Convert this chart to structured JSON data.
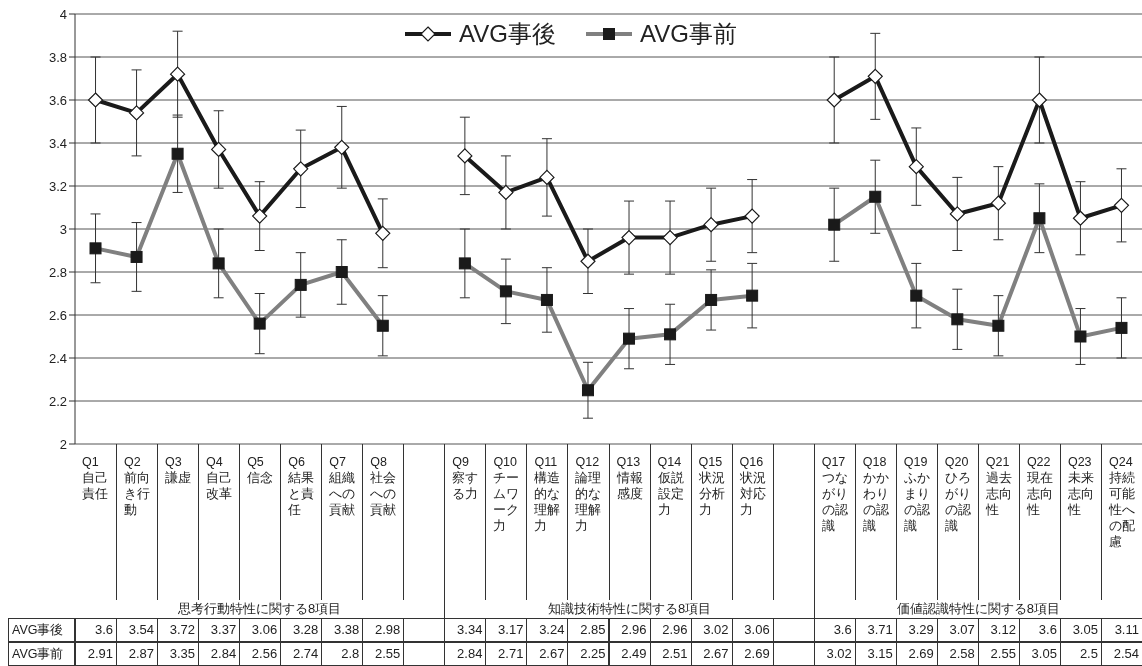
{
  "chart_data": {
    "type": "line",
    "categories": [
      "Q1 自己責任",
      "Q2 前向き行動",
      "Q3 謙虚",
      "Q4 自己改革",
      "Q5 信念",
      "Q6 結果と責任",
      "Q7 組織への貢献",
      "Q8 社会への貢献",
      null,
      "Q9 察する力",
      "Q10 チームワーク力",
      "Q11 構造的な理解力",
      "Q12 論理的な理解力",
      "Q13 情報感度",
      "Q14 仮説設定力",
      "Q15 状況分析力",
      "Q16 状況対応力",
      null,
      "Q17 つながりの認識",
      "Q18 かかわりの認識",
      "Q19 ふかまりの認識",
      "Q20 ひろがりの認識",
      "Q21 過去志向性",
      "Q22 現在志向性",
      "Q23 未来志向性",
      "Q24 持続可能性への配慮"
    ],
    "series": [
      {
        "name": "AVG事後",
        "color": "#1a1a1a",
        "marker": "diamond",
        "values": [
          3.6,
          3.54,
          3.72,
          3.37,
          3.06,
          3.28,
          3.38,
          2.98,
          null,
          3.34,
          3.17,
          3.24,
          2.85,
          2.96,
          2.96,
          3.02,
          3.06,
          null,
          3.6,
          3.71,
          3.29,
          3.07,
          3.12,
          3.6,
          3.05,
          3.11
        ],
        "errors": [
          0.2,
          0.2,
          0.2,
          0.18,
          0.16,
          0.18,
          0.19,
          0.16,
          null,
          0.18,
          0.17,
          0.18,
          0.15,
          0.17,
          0.17,
          0.17,
          0.17,
          null,
          0.2,
          0.2,
          0.18,
          0.17,
          0.17,
          0.2,
          0.17,
          0.17
        ]
      },
      {
        "name": "AVG事前",
        "color": "#808080",
        "marker": "square",
        "values": [
          2.91,
          2.87,
          3.35,
          2.84,
          2.56,
          2.74,
          2.8,
          2.55,
          null,
          2.84,
          2.71,
          2.67,
          2.25,
          2.49,
          2.51,
          2.67,
          2.69,
          null,
          3.02,
          3.15,
          2.69,
          2.58,
          2.55,
          3.05,
          2.5,
          2.54
        ],
        "errors": [
          0.16,
          0.16,
          0.18,
          0.16,
          0.14,
          0.15,
          0.15,
          0.14,
          null,
          0.16,
          0.15,
          0.15,
          0.13,
          0.14,
          0.14,
          0.14,
          0.15,
          null,
          0.17,
          0.17,
          0.15,
          0.14,
          0.14,
          0.16,
          0.13,
          0.14
        ]
      }
    ],
    "ylim": [
      2,
      4
    ],
    "yticks": [
      2,
      2.2,
      2.4,
      2.6,
      2.8,
      3,
      3.2,
      3.4,
      3.6,
      3.8,
      4
    ],
    "grid": "y",
    "legend": "top",
    "data_labels": true,
    "annotations": [
      "思考行動特性に関する8項目",
      "知識技術特性に関する8項目",
      "価値認識特性に関する8項目"
    ]
  }
}
